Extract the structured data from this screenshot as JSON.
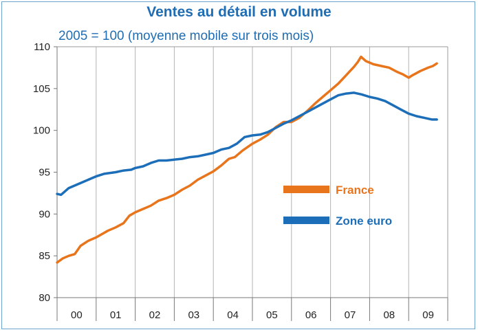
{
  "title": "Ventes au détail en volume",
  "subtitle": "2005 = 100 (moyenne mobile sur trois mois)",
  "colors": {
    "france": "#e8751c",
    "zone_euro": "#1d6eb8",
    "title": "#1f6db4",
    "grid": "#b3b3b3"
  },
  "chart_data": {
    "type": "line",
    "title": "Ventes au détail en volume",
    "subtitle": "2005 = 100 (moyenne mobile sur trois mois)",
    "xlabel": "",
    "ylabel": "",
    "ylim": [
      80,
      110
    ],
    "yticks": [
      80,
      85,
      90,
      95,
      100,
      105,
      110
    ],
    "categories": [
      "00",
      "01",
      "02",
      "03",
      "04",
      "05",
      "06",
      "07",
      "08",
      "09"
    ],
    "legend": "center-right",
    "grid": "vertical year separators",
    "series": [
      {
        "name": "France",
        "color": "#e8751c",
        "points": [
          [
            2000.0,
            84.2
          ],
          [
            2000.15,
            84.7
          ],
          [
            2000.3,
            85.0
          ],
          [
            2000.45,
            85.2
          ],
          [
            2000.6,
            86.2
          ],
          [
            2000.8,
            86.8
          ],
          [
            2001.0,
            87.2
          ],
          [
            2001.3,
            88.0
          ],
          [
            2001.5,
            88.4
          ],
          [
            2001.7,
            88.9
          ],
          [
            2001.85,
            89.8
          ],
          [
            2002.0,
            90.2
          ],
          [
            2002.2,
            90.6
          ],
          [
            2002.4,
            91.0
          ],
          [
            2002.6,
            91.6
          ],
          [
            2002.8,
            91.9
          ],
          [
            2003.0,
            92.3
          ],
          [
            2003.2,
            92.9
          ],
          [
            2003.4,
            93.4
          ],
          [
            2003.6,
            94.1
          ],
          [
            2003.8,
            94.6
          ],
          [
            2004.0,
            95.1
          ],
          [
            2004.2,
            95.8
          ],
          [
            2004.4,
            96.6
          ],
          [
            2004.55,
            96.8
          ],
          [
            2004.75,
            97.6
          ],
          [
            2005.0,
            98.4
          ],
          [
            2005.2,
            98.9
          ],
          [
            2005.4,
            99.5
          ],
          [
            2005.6,
            100.4
          ],
          [
            2005.8,
            101.0
          ],
          [
            2006.0,
            101.0
          ],
          [
            2006.2,
            101.5
          ],
          [
            2006.4,
            102.3
          ],
          [
            2006.6,
            103.2
          ],
          [
            2006.8,
            104.0
          ],
          [
            2007.0,
            104.8
          ],
          [
            2007.2,
            105.6
          ],
          [
            2007.4,
            106.6
          ],
          [
            2007.6,
            107.6
          ],
          [
            2007.7,
            108.2
          ],
          [
            2007.78,
            108.8
          ],
          [
            2007.9,
            108.3
          ],
          [
            2008.1,
            107.9
          ],
          [
            2008.3,
            107.7
          ],
          [
            2008.5,
            107.5
          ],
          [
            2008.7,
            107.0
          ],
          [
            2008.85,
            106.7
          ],
          [
            2009.0,
            106.3
          ],
          [
            2009.1,
            106.6
          ],
          [
            2009.3,
            107.1
          ],
          [
            2009.5,
            107.5
          ],
          [
            2009.62,
            107.7
          ],
          [
            2009.72,
            108.0
          ]
        ]
      },
      {
        "name": "Zone euro",
        "color": "#1d6eb8",
        "points": [
          [
            2000.0,
            92.4
          ],
          [
            2000.1,
            92.3
          ],
          [
            2000.3,
            93.1
          ],
          [
            2000.5,
            93.5
          ],
          [
            2000.7,
            93.9
          ],
          [
            2000.9,
            94.3
          ],
          [
            2001.0,
            94.5
          ],
          [
            2001.2,
            94.8
          ],
          [
            2001.5,
            95.0
          ],
          [
            2001.7,
            95.2
          ],
          [
            2001.9,
            95.3
          ],
          [
            2002.0,
            95.5
          ],
          [
            2002.2,
            95.7
          ],
          [
            2002.4,
            96.1
          ],
          [
            2002.6,
            96.4
          ],
          [
            2002.8,
            96.4
          ],
          [
            2003.0,
            96.5
          ],
          [
            2003.2,
            96.6
          ],
          [
            2003.4,
            96.8
          ],
          [
            2003.6,
            96.9
          ],
          [
            2003.8,
            97.1
          ],
          [
            2004.0,
            97.3
          ],
          [
            2004.2,
            97.7
          ],
          [
            2004.4,
            97.9
          ],
          [
            2004.6,
            98.4
          ],
          [
            2004.8,
            99.2
          ],
          [
            2005.0,
            99.4
          ],
          [
            2005.2,
            99.5
          ],
          [
            2005.4,
            99.8
          ],
          [
            2005.6,
            100.3
          ],
          [
            2005.8,
            100.8
          ],
          [
            2006.0,
            101.2
          ],
          [
            2006.2,
            101.7
          ],
          [
            2006.4,
            102.2
          ],
          [
            2006.6,
            102.7
          ],
          [
            2006.8,
            103.2
          ],
          [
            2007.0,
            103.7
          ],
          [
            2007.2,
            104.2
          ],
          [
            2007.4,
            104.4
          ],
          [
            2007.6,
            104.5
          ],
          [
            2007.8,
            104.3
          ],
          [
            2008.0,
            104.0
          ],
          [
            2008.2,
            103.8
          ],
          [
            2008.4,
            103.5
          ],
          [
            2008.6,
            103.0
          ],
          [
            2008.8,
            102.5
          ],
          [
            2009.0,
            102.0
          ],
          [
            2009.2,
            101.7
          ],
          [
            2009.4,
            101.5
          ],
          [
            2009.6,
            101.3
          ],
          [
            2009.72,
            101.3
          ]
        ]
      }
    ]
  }
}
